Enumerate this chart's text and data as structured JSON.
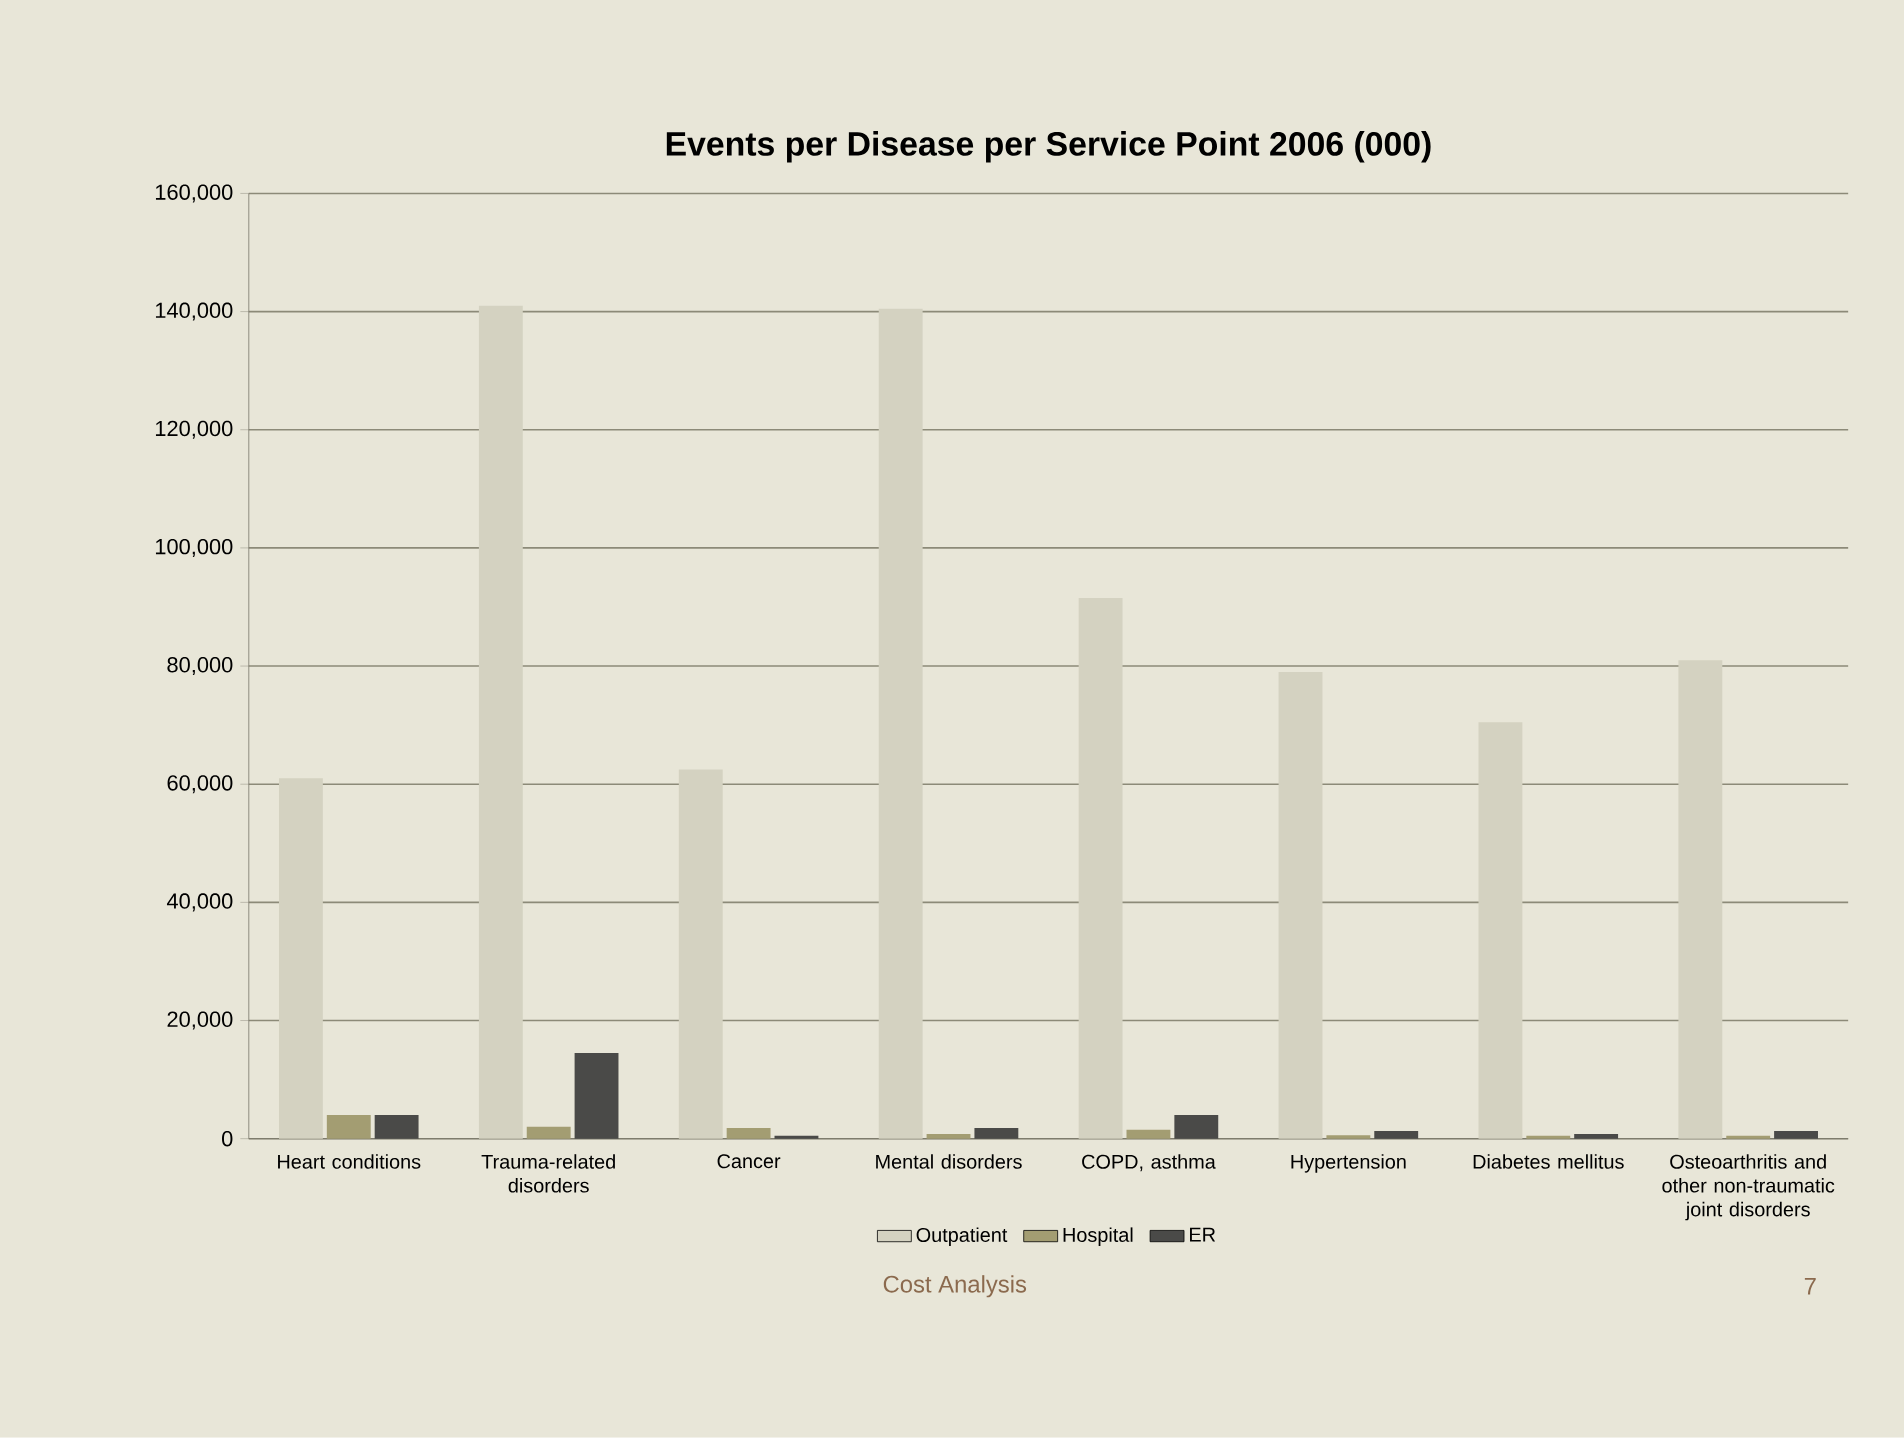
{
  "chart_data": {
    "type": "bar",
    "title": "Events per Disease per Service Point 2006 (000)",
    "categories": [
      "Heart conditions",
      "Trauma-related disorders",
      "Cancer",
      "Mental disorders",
      "COPD, asthma",
      "Hypertension",
      "Diabetes mellitus",
      "Osteoarthritis and other non-traumatic joint disorders"
    ],
    "series": [
      {
        "name": "Outpatient",
        "color": "#d4d2c1",
        "values": [
          61000,
          141000,
          62500,
          140500,
          91500,
          79000,
          70500,
          81000
        ]
      },
      {
        "name": "Hospital",
        "color": "#a39d72",
        "values": [
          4000,
          2000,
          1800,
          800,
          1500,
          600,
          500,
          500
        ]
      },
      {
        "name": "ER",
        "color": "#4a4a48",
        "values": [
          4000,
          14500,
          500,
          1800,
          4000,
          1300,
          800,
          1300
        ]
      }
    ],
    "ylim": [
      0,
      160000
    ],
    "yticks": [
      {
        "value": 0,
        "label": "0"
      },
      {
        "value": 20000,
        "label": "20,000"
      },
      {
        "value": 40000,
        "label": "40,000"
      },
      {
        "value": 60000,
        "label": "60,000"
      },
      {
        "value": 80000,
        "label": "80,000"
      },
      {
        "value": 100000,
        "label": "100,000"
      },
      {
        "value": 120000,
        "label": "120,000"
      },
      {
        "value": 140000,
        "label": "140,000"
      },
      {
        "value": 160000,
        "label": "160,000"
      }
    ],
    "grid": "y",
    "legend": "bottom",
    "annotations": [
      "Cost Analysis",
      "7"
    ]
  }
}
